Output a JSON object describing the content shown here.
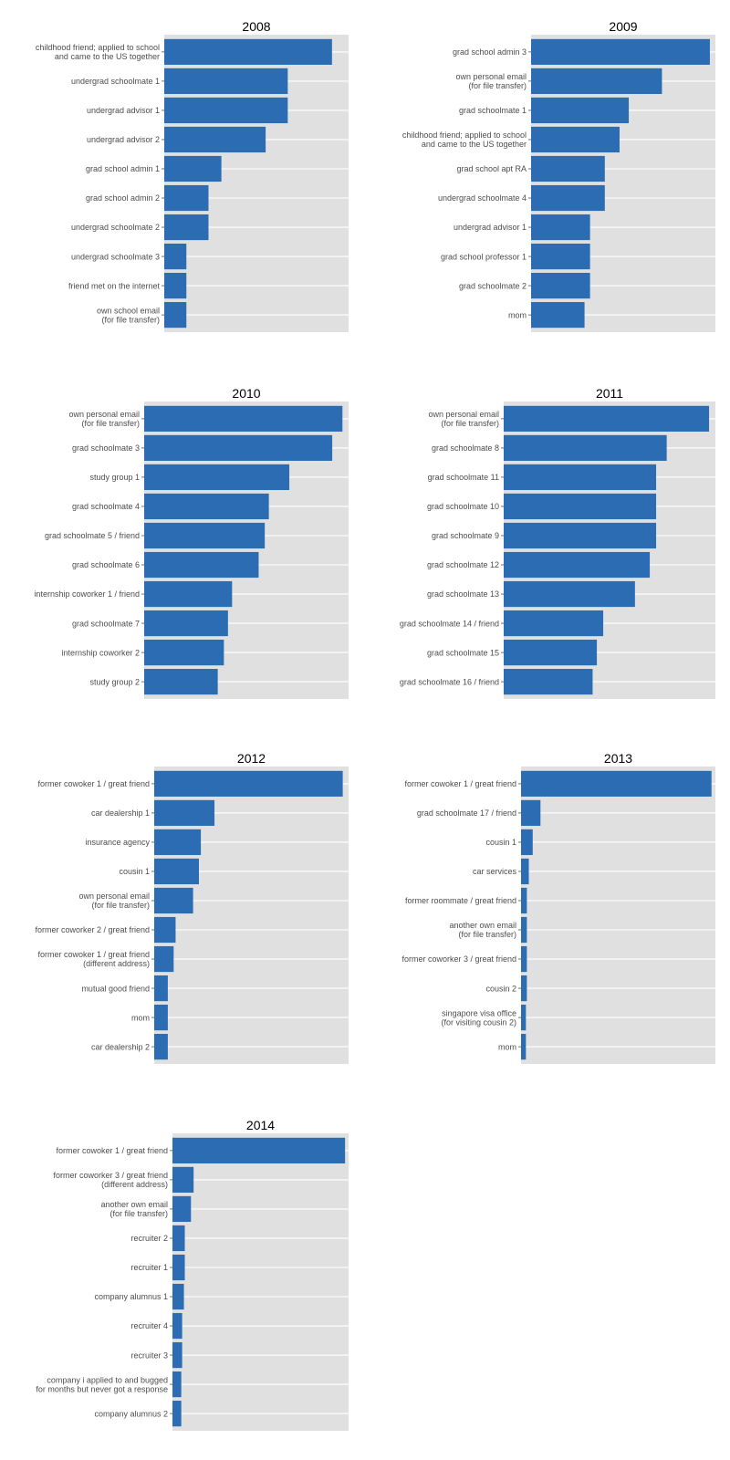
{
  "chart_data": [
    {
      "type": "bar",
      "orientation": "horizontal",
      "title": "2008",
      "categories": [
        "childhood friend; applied to school\nand came to the US together",
        "undergrad schoolmate 1",
        "undergrad advisor 1",
        "undergrad advisor 2",
        "grad school admin 1",
        "grad school admin 2",
        "undergrad schoolmate 2",
        "undergrad schoolmate 3",
        "friend met on the internet",
        "own school email\n(for file transfer)"
      ],
      "values": [
        91,
        67,
        67,
        55,
        31,
        24,
        24,
        12,
        12,
        12
      ],
      "xlim": [
        0,
        100
      ],
      "grid": true,
      "bar_color": "#2b6cb3",
      "panel_color": "#e0e0e0"
    },
    {
      "type": "bar",
      "orientation": "horizontal",
      "title": "2009",
      "categories": [
        "grad school admin 3",
        "own personal email\n(for file transfer)",
        "grad schoolmate 1",
        "childhood friend; applied to school\nand came to the US together",
        "grad school apt RA",
        "undergrad schoolmate 4",
        "undergrad advisor 1",
        "grad school professor 1",
        "grad schoolmate 2",
        "mom"
      ],
      "values": [
        97,
        71,
        53,
        48,
        40,
        40,
        32,
        32,
        32,
        29
      ],
      "xlim": [
        0,
        100
      ],
      "grid": true,
      "bar_color": "#2b6cb3",
      "panel_color": "#e0e0e0"
    },
    {
      "type": "bar",
      "orientation": "horizontal",
      "title": "2010",
      "categories": [
        "own personal email\n(for file transfer)",
        "grad schoolmate 3",
        "study group 1",
        "grad schoolmate 4",
        "grad schoolmate 5 / friend",
        "grad schoolmate 6",
        "internship coworker 1 / friend",
        "grad schoolmate 7",
        "internship coworker 2",
        "study group 2"
      ],
      "values": [
        97,
        92,
        71,
        61,
        59,
        56,
        43,
        41,
        39,
        36
      ],
      "xlim": [
        0,
        100
      ],
      "grid": true,
      "bar_color": "#2b6cb3",
      "panel_color": "#e0e0e0"
    },
    {
      "type": "bar",
      "orientation": "horizontal",
      "title": "2011",
      "categories": [
        "own personal email\n(for file transfer)",
        "grad schoolmate 8",
        "grad schoolmate 11",
        "grad schoolmate 10",
        "grad schoolmate 9",
        "grad schoolmate 12",
        "grad schoolmate 13",
        "grad schoolmate 14 / friend",
        "grad schoolmate 15",
        "grad schoolmate 16 / friend"
      ],
      "values": [
        97,
        77,
        72,
        72,
        72,
        69,
        62,
        47,
        44,
        42
      ],
      "xlim": [
        0,
        100
      ],
      "grid": true,
      "bar_color": "#2b6cb3",
      "panel_color": "#e0e0e0"
    },
    {
      "type": "bar",
      "orientation": "horizontal",
      "title": "2012",
      "categories": [
        "former cowoker 1 / great friend",
        "car dealership 1",
        "insurance agency",
        "cousin 1",
        "own personal email\n(for file transfer)",
        "former coworker 2 / great friend",
        "former cowoker 1 / great friend\n(different address)",
        "mutual good friend",
        "mom",
        "car dealership 2"
      ],
      "values": [
        97,
        31,
        24,
        23,
        20,
        11,
        10,
        7,
        7,
        7
      ],
      "xlim": [
        0,
        100
      ],
      "grid": true,
      "bar_color": "#2b6cb3",
      "panel_color": "#e0e0e0"
    },
    {
      "type": "bar",
      "orientation": "horizontal",
      "title": "2013",
      "categories": [
        "former cowoker 1 / great friend",
        "grad schoolmate 17 / friend",
        "cousin 1",
        "car services",
        "former roommate / great friend",
        "another own email\n(for file transfer)",
        "former coworker 3 / great friend",
        "cousin 2",
        "singapore visa office\n(for visiting cousin 2)",
        "mom"
      ],
      "values": [
        98,
        10,
        6,
        4,
        3,
        3,
        3,
        3,
        2.5,
        2.5
      ],
      "xlim": [
        0,
        100
      ],
      "grid": true,
      "bar_color": "#2b6cb3",
      "panel_color": "#e0e0e0"
    },
    {
      "type": "bar",
      "orientation": "horizontal",
      "title": "2014",
      "categories": [
        "former cowoker 1 / great friend",
        "former coworker 3 / great friend\n(different address)",
        "another own email\n(for file transfer)",
        "recruiter 2",
        "recruiter 1",
        "company alumnus 1",
        "recruiter 4",
        "recruiter 3",
        "company i applied to and bugged\nfor months but never got a response",
        "company alumnus 2"
      ],
      "values": [
        98,
        12,
        10.5,
        7,
        7,
        6.5,
        5.5,
        5.5,
        5,
        5
      ],
      "xlim": [
        0,
        100
      ],
      "grid": true,
      "bar_color": "#2b6cb3",
      "panel_color": "#e0e0e0"
    }
  ]
}
